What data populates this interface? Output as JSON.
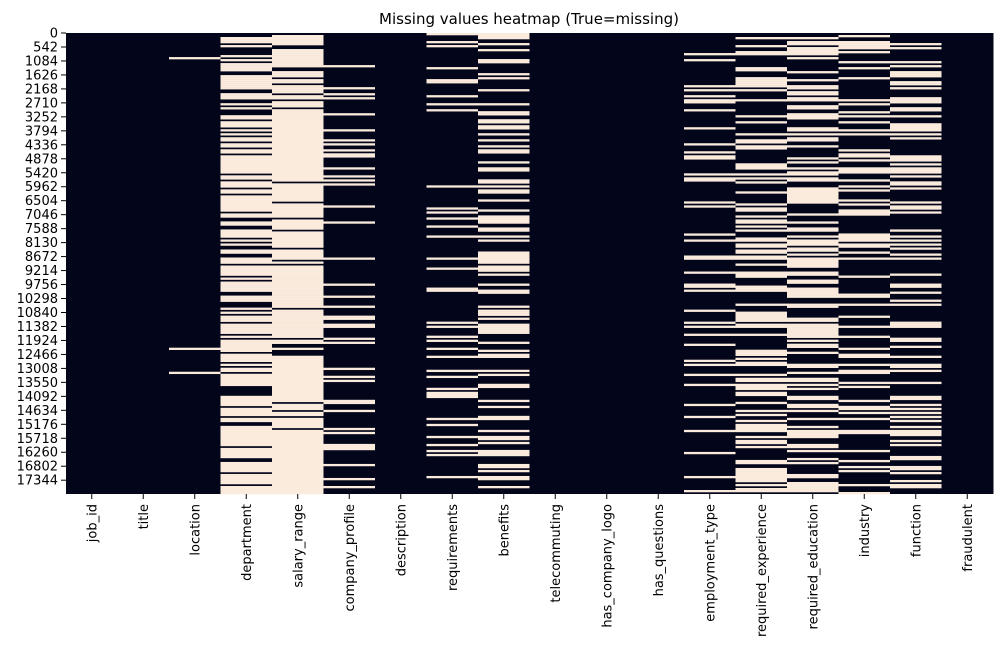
{
  "chart_data": {
    "type": "heatmap",
    "title": "Missing values heatmap (True=missing)",
    "xlabel": "",
    "ylabel": "",
    "colors": {
      "missing": "#FAEBDD",
      "present": "#03051A"
    },
    "n_rows": 17880,
    "y_ticks": [
      0,
      542,
      1084,
      1626,
      2168,
      2710,
      3252,
      3794,
      4336,
      4878,
      5420,
      5962,
      6504,
      7046,
      7588,
      8130,
      8672,
      9214,
      9756,
      10298,
      10840,
      11382,
      11924,
      12466,
      13008,
      13550,
      14092,
      14634,
      15176,
      15718,
      16260,
      16802,
      17344
    ],
    "columns": [
      "job_id",
      "title",
      "location",
      "department",
      "salary_range",
      "company_profile",
      "description",
      "requirements",
      "benefits",
      "telecommuting",
      "has_company_logo",
      "has_questions",
      "employment_type",
      "required_experience",
      "required_education",
      "industry",
      "function",
      "fraudulent"
    ],
    "missing_fraction": [
      0,
      0,
      0.02,
      0.65,
      0.84,
      0.19,
      0,
      0.15,
      0.4,
      0,
      0,
      0,
      0.19,
      0.39,
      0.45,
      0.27,
      0.36,
      0
    ]
  }
}
